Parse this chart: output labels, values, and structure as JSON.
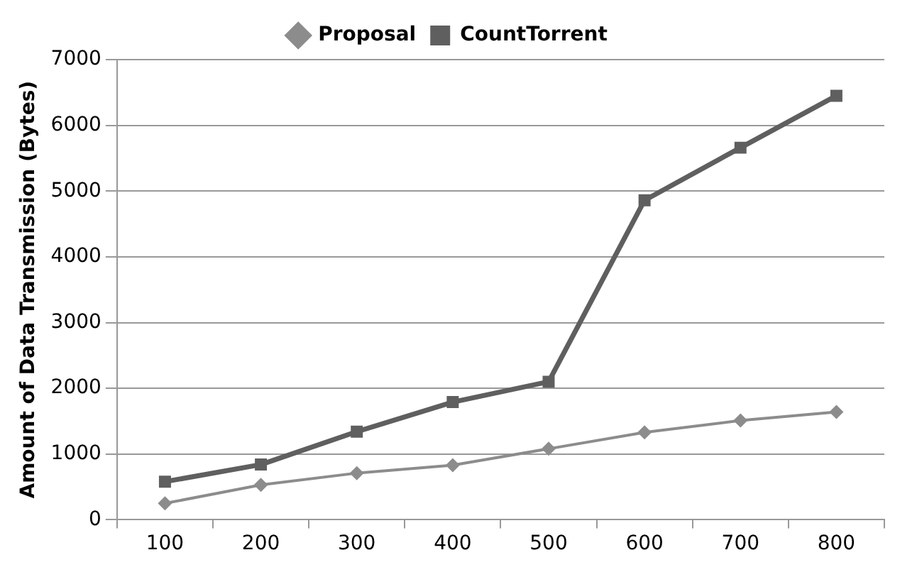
{
  "chart_data": {
    "type": "line",
    "ylabel": "Amount of Data Transmission (Bytes)",
    "categories": [
      "100",
      "200",
      "300",
      "400",
      "500",
      "600",
      "700",
      "800"
    ],
    "series": [
      {
        "name": "Proposal",
        "color": "#8c8c8c",
        "marker": "diamond",
        "values": [
          250,
          530,
          710,
          830,
          1080,
          1330,
          1510,
          1640
        ]
      },
      {
        "name": "CountTorrent",
        "color": "#5f5f5f",
        "marker": "square",
        "values": [
          580,
          840,
          1340,
          1790,
          2100,
          4860,
          5660,
          6450
        ]
      }
    ],
    "ylim": [
      0,
      7000
    ],
    "yticks": [
      0,
      1000,
      2000,
      3000,
      4000,
      5000,
      6000,
      7000
    ],
    "grid": "y",
    "legend": "top"
  }
}
